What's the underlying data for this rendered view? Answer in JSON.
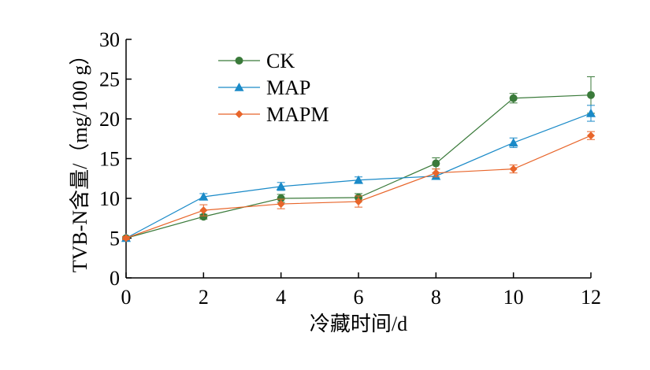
{
  "chart_data": {
    "type": "line",
    "xlabel": "冷藏时间/d",
    "ylabel": "TVB-N含量/（mg/100 g）",
    "x": [
      0,
      2,
      4,
      6,
      8,
      10,
      12
    ],
    "xlim": [
      0,
      12
    ],
    "ylim": [
      0,
      30
    ],
    "xticks": [
      0,
      2,
      4,
      6,
      8,
      10,
      12
    ],
    "yticks": [
      0,
      5,
      10,
      15,
      20,
      25,
      30
    ],
    "grid": false,
    "legend_position": "top-left",
    "series": [
      {
        "name": "CK",
        "marker": "circle",
        "color": "#3a7a3a",
        "values": [
          5.0,
          7.7,
          10.0,
          10.1,
          14.4,
          22.6,
          23.0
        ],
        "errors": [
          0.2,
          0.3,
          0.5,
          0.5,
          0.7,
          0.6,
          2.3
        ]
      },
      {
        "name": "MAP",
        "marker": "triangle",
        "color": "#1a8ac8",
        "values": [
          5.0,
          10.2,
          11.5,
          12.3,
          12.8,
          17.0,
          20.7
        ],
        "errors": [
          0.2,
          0.4,
          0.5,
          0.4,
          0.4,
          0.6,
          1.0
        ]
      },
      {
        "name": "MAPM",
        "marker": "diamond",
        "color": "#e8652a",
        "values": [
          5.0,
          8.5,
          9.3,
          9.6,
          13.2,
          13.7,
          17.9
        ],
        "errors": [
          0.2,
          0.7,
          0.6,
          0.7,
          0.5,
          0.5,
          0.5
        ]
      }
    ]
  }
}
